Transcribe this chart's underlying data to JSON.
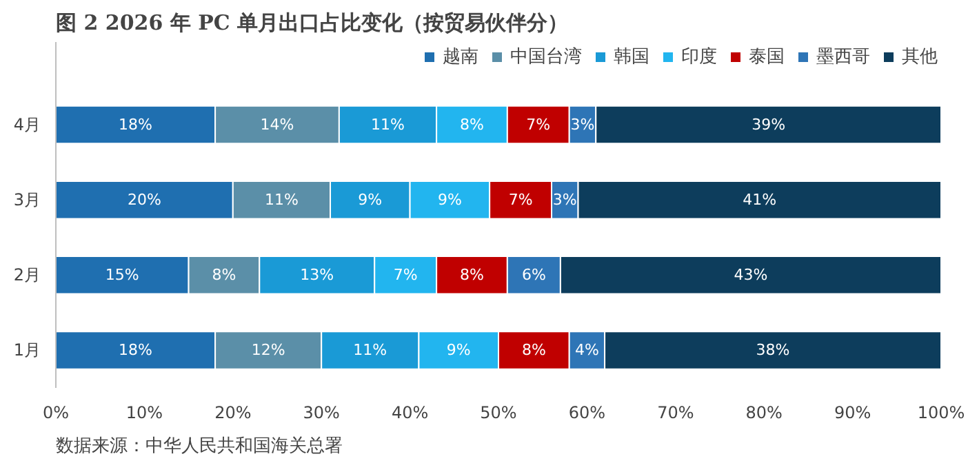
{
  "chart_data": {
    "type": "bar",
    "orientation": "horizontal",
    "stacked": true,
    "title": "图 2 2026 年 PC 单月出口占比变化（按贸易伙伴分）",
    "categories": [
      "4月",
      "3月",
      "2月",
      "1月"
    ],
    "series": [
      {
        "name": "越南",
        "color": "#1f6fb0",
        "values": [
          18,
          20,
          15,
          18
        ],
        "value_labels": [
          "18%",
          "20%",
          "15%",
          "18%"
        ]
      },
      {
        "name": "中国台湾",
        "color": "#5b8fa8",
        "values": [
          14,
          11,
          8,
          12
        ],
        "value_labels": [
          "14%",
          "11%",
          "8%",
          "12%"
        ]
      },
      {
        "name": "韩国",
        "color": "#1a9ad6",
        "values": [
          11,
          9,
          13,
          11
        ],
        "value_labels": [
          "11%",
          "9%",
          "13%",
          "11%"
        ]
      },
      {
        "name": "印度",
        "color": "#22b5ef",
        "values": [
          8,
          9,
          7,
          9
        ],
        "value_labels": [
          "8%",
          "9%",
          "7%",
          "9%"
        ]
      },
      {
        "name": "泰国",
        "color": "#c00000",
        "values": [
          7,
          7,
          8,
          8
        ],
        "value_labels": [
          "7%",
          "7%",
          "8%",
          "8%"
        ]
      },
      {
        "name": "墨西哥",
        "color": "#2e75b6",
        "values": [
          3,
          3,
          6,
          4
        ],
        "value_labels": [
          "3%",
          "3%",
          "6%",
          "4%"
        ]
      },
      {
        "name": "其他",
        "color": "#0d3d5c",
        "values": [
          39,
          41,
          43,
          38
        ],
        "value_labels": [
          "39%",
          "41%",
          "43%",
          "38%"
        ]
      }
    ],
    "xlim": [
      0,
      100
    ],
    "xticks": [
      {
        "value": 0,
        "label": "0%"
      },
      {
        "value": 10,
        "label": "10%"
      },
      {
        "value": 20,
        "label": "20%"
      },
      {
        "value": 30,
        "label": "30%"
      },
      {
        "value": 40,
        "label": "40%"
      },
      {
        "value": 50,
        "label": "50%"
      },
      {
        "value": 60,
        "label": "60%"
      },
      {
        "value": 70,
        "label": "70%"
      },
      {
        "value": 80,
        "label": "80%"
      },
      {
        "value": 90,
        "label": "90%"
      },
      {
        "value": 100,
        "label": "100%"
      }
    ],
    "legend": "top right",
    "annotations": [
      "数据来源：中华人民共和国海关总署"
    ]
  }
}
